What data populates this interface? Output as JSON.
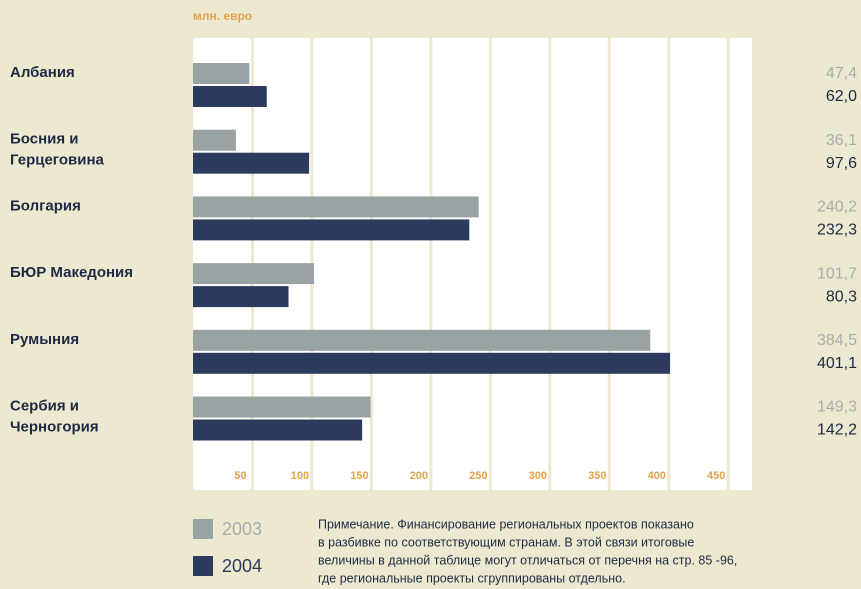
{
  "chart_data": {
    "type": "bar",
    "orientation": "horizontal",
    "unit_label": "млн. евро",
    "categories": [
      [
        "Албания"
      ],
      [
        "Босния и",
        "Герцеговина"
      ],
      [
        "Болгария"
      ],
      [
        "БЮР Македония"
      ],
      [
        "Румыния"
      ],
      [
        "Сербия и",
        "Черногория"
      ]
    ],
    "series": [
      {
        "name": "2003",
        "color": "#9aa3a3",
        "label_color": "#a8aeae",
        "values": [
          47.4,
          36.1,
          240.2,
          101.7,
          384.5,
          149.3
        ],
        "value_labels": [
          "47,4",
          "36,1",
          "240,2",
          "101,7",
          "384,5",
          "149,3"
        ]
      },
      {
        "name": "2004",
        "color": "#2c3a5d",
        "label_color": "#1e2a44",
        "values": [
          62.0,
          97.6,
          232.3,
          80.3,
          401.1,
          142.2
        ],
        "value_labels": [
          "62,0",
          "97,6",
          "232,3",
          "80,3",
          "401,1",
          "142,2"
        ]
      }
    ],
    "xlim": [
      0,
      470
    ],
    "xticks": [
      50,
      100,
      150,
      200,
      250,
      300,
      350,
      400,
      450
    ],
    "grid": true,
    "note": [
      "Примечание. Финансирование региональных проектов показано",
      "в разбивке по соответствующим странам. В этой связи итоговые",
      "величины в данной таблице могут отличаться от перечня на стр. 85 -96,",
      "где региональные проекты сгруппированы отдельно."
    ]
  }
}
